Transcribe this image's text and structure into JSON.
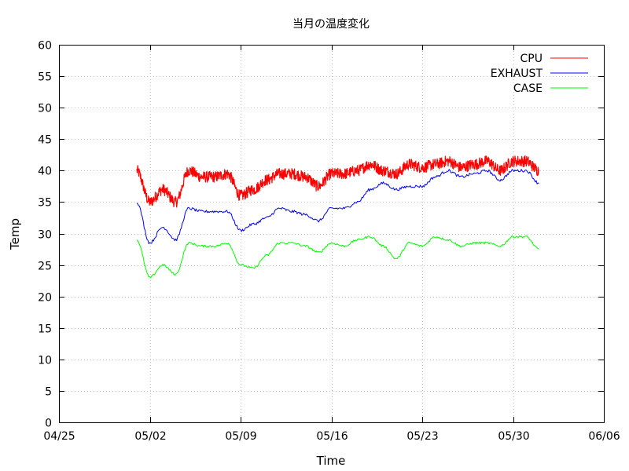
{
  "chart_data": {
    "type": "line",
    "title": "当月の温度変化",
    "xlabel": "Time",
    "ylabel": "Temp",
    "xlim": [
      "2025-04-25",
      "2025-06-06"
    ],
    "ylim": [
      0,
      60
    ],
    "x_tick_labels": [
      "04/25",
      "05/02",
      "05/09",
      "05/16",
      "05/23",
      "05/30",
      "06/06"
    ],
    "y_tick_labels": [
      "0",
      "5",
      "10",
      "15",
      "20",
      "25",
      "30",
      "35",
      "40",
      "45",
      "50",
      "55",
      "60"
    ],
    "grid": true,
    "legend_position": "top-right",
    "x": [
      "2025-05-01",
      "2025-05-02",
      "2025-05-03",
      "2025-05-04",
      "2025-05-05",
      "2025-05-06",
      "2025-05-07",
      "2025-05-08",
      "2025-05-09",
      "2025-05-10",
      "2025-05-11",
      "2025-05-12",
      "2025-05-13",
      "2025-05-14",
      "2025-05-15",
      "2025-05-16",
      "2025-05-17",
      "2025-05-18",
      "2025-05-19",
      "2025-05-20",
      "2025-05-21",
      "2025-05-22",
      "2025-05-23",
      "2025-05-24",
      "2025-05-25",
      "2025-05-26",
      "2025-05-27",
      "2025-05-28",
      "2025-05-29",
      "2025-05-30",
      "2025-05-31",
      "2025-06-01"
    ],
    "series": [
      {
        "name": "CPU",
        "color": "#ff0000",
        "values": [
          40.0,
          35.0,
          37.0,
          35.0,
          40.0,
          39.0,
          39.0,
          39.5,
          36.0,
          37.0,
          38.5,
          39.5,
          39.5,
          39.0,
          37.5,
          39.5,
          39.5,
          40.0,
          41.0,
          40.0,
          39.5,
          41.0,
          40.5,
          41.0,
          41.5,
          40.5,
          41.0,
          41.5,
          40.0,
          41.5,
          41.5,
          40.0
        ]
      },
      {
        "name": "EXHAUST",
        "color": "#0000ff",
        "values": [
          35.0,
          28.5,
          31.0,
          29.0,
          34.0,
          33.5,
          33.5,
          33.5,
          30.5,
          31.5,
          32.5,
          34.0,
          33.5,
          33.0,
          32.0,
          34.0,
          34.0,
          35.0,
          37.0,
          38.0,
          37.0,
          37.5,
          37.5,
          39.0,
          40.0,
          39.0,
          39.5,
          40.0,
          38.5,
          40.0,
          40.0,
          38.0
        ]
      },
      {
        "name": "CASE",
        "color": "#00ff00",
        "values": [
          29.0,
          23.0,
          25.0,
          23.5,
          28.5,
          28.0,
          28.0,
          28.5,
          25.0,
          24.5,
          26.5,
          28.5,
          28.5,
          28.0,
          27.0,
          28.5,
          28.0,
          29.0,
          29.5,
          28.0,
          26.0,
          28.5,
          28.0,
          29.5,
          29.0,
          28.0,
          28.5,
          28.5,
          28.0,
          29.5,
          29.5,
          27.5
        ]
      }
    ]
  }
}
